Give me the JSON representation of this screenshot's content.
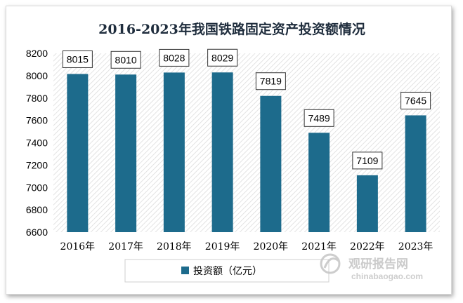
{
  "chart_data": {
    "type": "bar",
    "title": "2016-2023年我国铁路固定资产投资额情况",
    "categories": [
      "2016年",
      "2017年",
      "2018年",
      "2019年",
      "2020年",
      "2021年",
      "2022年",
      "2023年"
    ],
    "series": [
      {
        "name": "投资额（亿元）",
        "values": [
          8015,
          8010,
          8028,
          8029,
          7819,
          7489,
          7109,
          7645
        ],
        "color": "#1d6b8c"
      }
    ],
    "ylim": [
      6600,
      8200
    ],
    "yticks": [
      6600,
      6800,
      7000,
      7200,
      7400,
      7600,
      7800,
      8000,
      8200
    ],
    "grid": false,
    "plot_background": "diagonal-hatch",
    "legend_position": "bottom"
  },
  "watermark": {
    "cn": "观研报告网",
    "en": "chinabaogao.com"
  }
}
